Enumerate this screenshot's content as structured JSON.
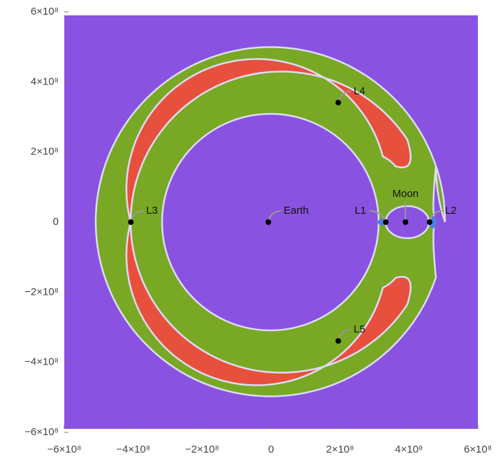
{
  "chart_data": {
    "type": "contour",
    "xlim": [
      -600000000,
      600000000
    ],
    "ylim": [
      -590000000,
      590000000
    ],
    "xticks": [
      {
        "value": -600000000,
        "label": "−6×10⁸"
      },
      {
        "value": -400000000,
        "label": "−4×10⁸"
      },
      {
        "value": -200000000,
        "label": "−2×10⁸"
      },
      0,
      {
        "value": 200000000,
        "label": "2×10⁸"
      },
      {
        "value": 400000000,
        "label": "4×10⁸"
      },
      {
        "value": 600000000,
        "label": "6×10⁸"
      }
    ],
    "yticks": [
      {
        "value": -600000000,
        "label": "−6×10⁸"
      },
      {
        "value": -400000000,
        "label": "−4×10⁸"
      },
      {
        "value": -200000000,
        "label": "−2×10⁸"
      },
      0,
      {
        "value": 200000000,
        "label": "2×10⁸"
      },
      {
        "value": 400000000,
        "label": "4×10⁸"
      },
      {
        "value": 600000000,
        "label": "6×10⁸"
      }
    ],
    "points": [
      {
        "name": "Earth",
        "x": -8000000,
        "y": 0
      },
      {
        "name": "Moon",
        "x": 390000000,
        "y": 0
      },
      {
        "name": "L1",
        "x": 333000000,
        "y": 0
      },
      {
        "name": "L2",
        "x": 460000000,
        "y": 0
      },
      {
        "name": "L3",
        "x": -407000000,
        "y": 0
      },
      {
        "name": "L4",
        "x": 195000000,
        "y": 341000000
      },
      {
        "name": "L5",
        "x": 195000000,
        "y": -339000000
      }
    ],
    "point_color": "#000000"
  }
}
